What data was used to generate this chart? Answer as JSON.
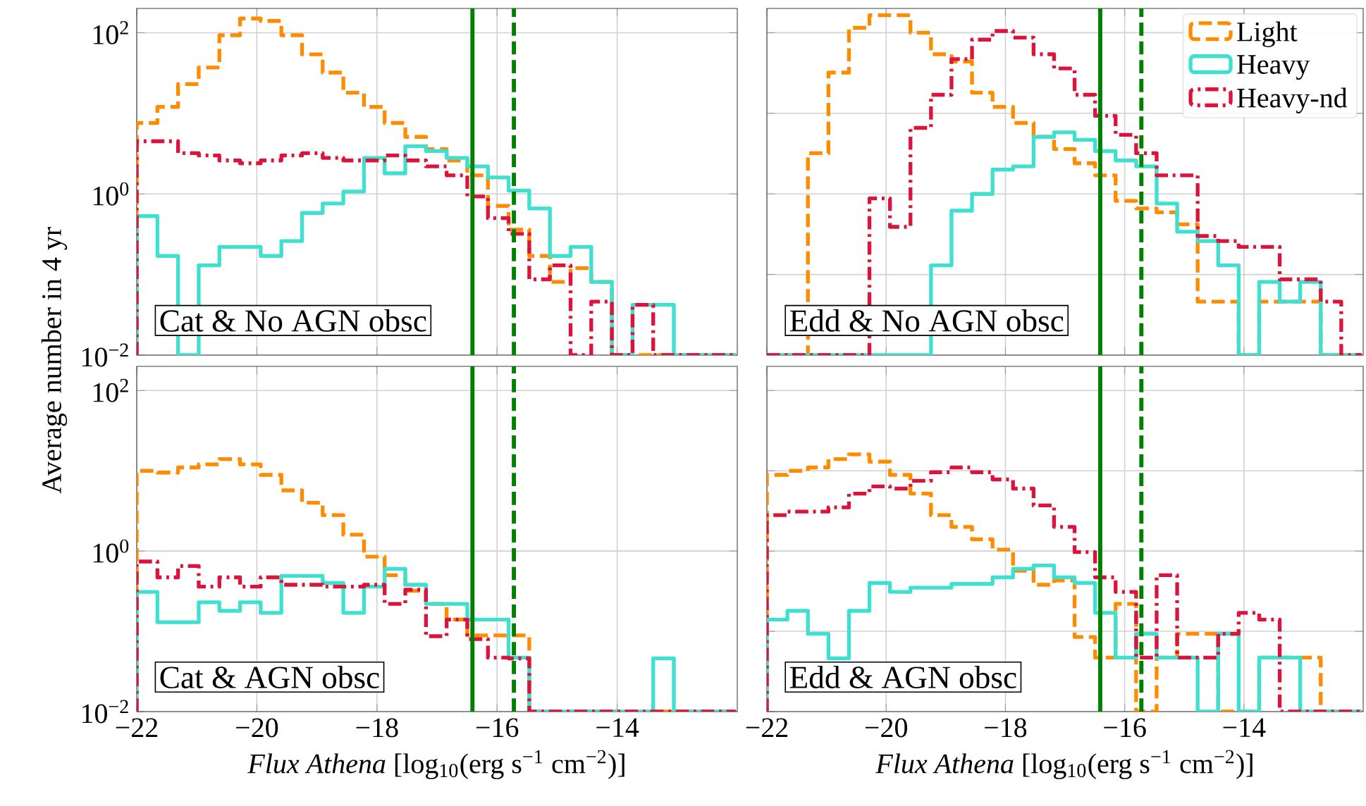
{
  "chart_data": [
    {
      "type": "histogram",
      "ylabel": "Average number in 4 yr",
      "annotations": [
        "Cat & No AGN obsc"
      ],
      "log": "y",
      "grid": true,
      "tick_labels": "y",
      "bins": [
        -22,
        -21.656,
        -21.312,
        -20.968,
        -20.624,
        -20.28,
        -19.936,
        -19.592,
        -19.248,
        -18.904,
        -18.56,
        -18.216,
        -17.872,
        -17.528,
        -17.184,
        -16.84,
        -16.496,
        -16.152,
        -15.808,
        -15.464,
        -15.12,
        -14.776,
        -14.432,
        -14.088,
        -13.744,
        -13.4,
        -13.056,
        -12.712,
        -12.368,
        -12.024
      ],
      "xlim": [
        -22,
        -12
      ],
      "ylim": [
        0.01,
        200
      ],
      "xticks": [
        -22,
        -20,
        -18,
        -16,
        -14
      ],
      "yticks": [
        {
          "value": 0.01,
          "label": "10$^{−2}$"
        },
        {
          "value": 1,
          "label": "10$^{0}$"
        },
        {
          "value": 100,
          "label": "10$^{2}$"
        }
      ],
      "ref_lines": [
        {
          "axis": "x",
          "value": -16.41,
          "color": "#008000",
          "line_style": "solid"
        },
        {
          "axis": "x",
          "value": -15.72,
          "color": "#008000",
          "line_style": "dashed"
        }
      ],
      "series": [
        {
          "color": "#ff8c00",
          "line_style": "dashed",
          "values": [
            7.6,
            12,
            23,
            37,
            93,
            150,
            140,
            93,
            54,
            32,
            18,
            12,
            7.6,
            5.1,
            3.6,
            2.6,
            1.7,
            0.71,
            0.36,
            0.17,
            0.081,
            0.12,
            0.081,
            null,
            null,
            null,
            null,
            null,
            null
          ]
        },
        {
          "color": "#40e0d0",
          "line_style": "solid",
          "values": [
            0.53,
            0.17,
            null,
            0.13,
            0.22,
            0.22,
            0.17,
            0.26,
            0.58,
            0.76,
            1.07,
            2.8,
            1.8,
            3.9,
            3.4,
            2.8,
            2.2,
            1.6,
            1.1,
            0.66,
            0.17,
            0.22,
            0.081,
            null,
            0.042,
            0.042,
            null,
            null,
            null
          ]
        },
        {
          "color": "#dc143c",
          "line_style": "dashdot",
          "values": [
            4.5,
            4.5,
            3.2,
            3.0,
            2.6,
            2.4,
            2.6,
            3.0,
            3.2,
            2.8,
            2.6,
            2.6,
            3.0,
            2.6,
            2.2,
            1.7,
            0.93,
            0.5,
            0.32,
            0.087,
            0.13,
            null,
            0.046,
            null,
            0.042,
            null,
            null,
            null,
            null
          ]
        }
      ]
    },
    {
      "type": "histogram",
      "annotations": [
        "Edd & No AGN obsc"
      ],
      "log": "y",
      "grid": true,
      "tick_labels": false,
      "legend": "top right",
      "bins": [
        -22,
        -21.656,
        -21.312,
        -20.968,
        -20.624,
        -20.28,
        -19.936,
        -19.592,
        -19.248,
        -18.904,
        -18.56,
        -18.216,
        -17.872,
        -17.528,
        -17.184,
        -16.84,
        -16.496,
        -16.152,
        -15.808,
        -15.464,
        -15.12,
        -14.776,
        -14.432,
        -14.088,
        -13.744,
        -13.4,
        -13.056,
        -12.712,
        -12.368,
        -12.024
      ],
      "xlim": [
        -22,
        -12
      ],
      "ylim": [
        0.01,
        200
      ],
      "xticks": [
        -22,
        -20,
        -18,
        -16,
        -14
      ],
      "yticks": [
        0.01,
        0.1,
        1,
        10,
        100
      ],
      "ref_lines": [
        {
          "axis": "x",
          "value": -16.41,
          "color": "#008000",
          "line_style": "solid"
        },
        {
          "axis": "x",
          "value": -15.72,
          "color": "#008000",
          "line_style": "dashed"
        }
      ],
      "series": [
        {
          "name": "Light",
          "color": "#ff8c00",
          "line_style": "dashed",
          "values": [
            null,
            null,
            3.2,
            32,
            115,
            165,
            165,
            100,
            54,
            44,
            18,
            12,
            7.6,
            5.1,
            3.6,
            2.4,
            1.7,
            0.82,
            0.66,
            0.59,
            0.42,
            0.046,
            0.046,
            null,
            0.046,
            0.046,
            0.046,
            null,
            null
          ]
        },
        {
          "name": "Heavy",
          "color": "#40e0d0",
          "line_style": "solid",
          "values": [
            null,
            null,
            null,
            null,
            null,
            null,
            null,
            null,
            0.13,
            0.62,
            1.0,
            2.0,
            2.2,
            5.1,
            5.8,
            4.7,
            3.4,
            2.6,
            2.2,
            0.76,
            0.34,
            0.26,
            0.13,
            null,
            0.081,
            0.046,
            0.081,
            null,
            null
          ]
        },
        {
          "name": "Heavy-nd",
          "color": "#dc143c",
          "line_style": "dashdot",
          "values": [
            null,
            null,
            null,
            null,
            null,
            0.88,
            0.39,
            6.6,
            17,
            47,
            82,
            105,
            87,
            54,
            36,
            17,
            9.3,
            5.4,
            3.2,
            1.7,
            1.7,
            0.3,
            0.26,
            0.22,
            0.22,
            0.087,
            0.087,
            0.046,
            null
          ]
        }
      ]
    },
    {
      "type": "histogram",
      "xlabel": "*Flux Athena* [log$_{10}$(erg s$^{−1}$ cm$^{−2}$)]",
      "annotations": [
        "Cat & AGN obsc"
      ],
      "log": "y",
      "grid": true,
      "bins": [
        -22,
        -21.656,
        -21.312,
        -20.968,
        -20.624,
        -20.28,
        -19.936,
        -19.592,
        -19.248,
        -18.904,
        -18.56,
        -18.216,
        -17.872,
        -17.528,
        -17.184,
        -16.84,
        -16.496,
        -16.152,
        -15.808,
        -15.464,
        -15.12,
        -14.776,
        -14.432,
        -14.088,
        -13.744,
        -13.4,
        -13.056,
        -12.712,
        -12.368,
        -12.024
      ],
      "xlim": [
        -22,
        -12
      ],
      "ylim": [
        0.01,
        200
      ],
      "xticks": [
        {
          "value": -22,
          "label": "−22"
        },
        {
          "value": -20,
          "label": "−20"
        },
        {
          "value": -18,
          "label": "−18"
        },
        {
          "value": -16,
          "label": "−16"
        },
        {
          "value": -14,
          "label": "−14"
        }
      ],
      "yticks": [
        {
          "value": 0.01,
          "label": "10$^{−2}$"
        },
        {
          "value": 1,
          "label": "10$^{0}$"
        },
        {
          "value": 100,
          "label": "10$^{2}$"
        }
      ],
      "ref_lines": [
        {
          "axis": "x",
          "value": -16.41,
          "color": "#008000",
          "line_style": "solid"
        },
        {
          "axis": "x",
          "value": -15.72,
          "color": "#008000",
          "line_style": "dashed"
        }
      ],
      "series": [
        {
          "color": "#ff8c00",
          "line_style": "dashed",
          "values": [
            10,
            9.5,
            11,
            12,
            14,
            12,
            8.9,
            5.7,
            4.0,
            2.8,
            1.6,
            0.85,
            0.5,
            0.32,
            0.22,
            0.14,
            0.089,
            0.089,
            0.089,
            null,
            null,
            null,
            null,
            null,
            null,
            null,
            null,
            null,
            null
          ]
        },
        {
          "color": "#40e0d0",
          "line_style": "solid",
          "values": [
            0.31,
            0.13,
            0.13,
            0.23,
            0.18,
            0.23,
            0.17,
            0.49,
            0.49,
            0.4,
            0.17,
            0.36,
            0.6,
            0.38,
            0.22,
            0.22,
            0.14,
            0.14,
            0.047,
            null,
            null,
            null,
            null,
            null,
            null,
            0.046,
            null,
            null,
            null
          ]
        },
        {
          "color": "#dc143c",
          "line_style": "dashdot",
          "values": [
            0.74,
            0.47,
            0.65,
            0.36,
            0.47,
            0.36,
            0.47,
            0.38,
            0.38,
            0.36,
            0.36,
            0.38,
            0.22,
            0.33,
            0.087,
            0.14,
            0.08,
            0.047,
            0.046,
            null,
            null,
            null,
            null,
            null,
            null,
            null,
            null,
            null,
            null
          ]
        }
      ]
    },
    {
      "type": "histogram",
      "xlabel": "*Flux Athena* [log$_{10}$(erg s$^{−1}$ cm$^{−2}$)]",
      "annotations": [
        "Edd & AGN obsc"
      ],
      "log": "y",
      "grid": true,
      "tick_labels": "x",
      "bins": [
        -22,
        -21.656,
        -21.312,
        -20.968,
        -20.624,
        -20.28,
        -19.936,
        -19.592,
        -19.248,
        -18.904,
        -18.56,
        -18.216,
        -17.872,
        -17.528,
        -17.184,
        -16.84,
        -16.496,
        -16.152,
        -15.808,
        -15.464,
        -15.12,
        -14.776,
        -14.432,
        -14.088,
        -13.744,
        -13.4,
        -13.056,
        -12.712,
        -12.368,
        -12.024
      ],
      "xlim": [
        -22,
        -12
      ],
      "ylim": [
        0.01,
        200
      ],
      "xticks": [
        {
          "value": -22,
          "label": "−22"
        },
        {
          "value": -20,
          "label": "−20"
        },
        {
          "value": -18,
          "label": "−18"
        },
        {
          "value": -16,
          "label": "−16"
        },
        {
          "value": -14,
          "label": "−14"
        }
      ],
      "yticks": [
        0.01,
        0.1,
        1,
        10,
        100
      ],
      "ref_lines": [
        {
          "axis": "x",
          "value": -16.41,
          "color": "#008000",
          "line_style": "solid"
        },
        {
          "axis": "x",
          "value": -15.72,
          "color": "#008000",
          "line_style": "dashed"
        }
      ],
      "series": [
        {
          "color": "#ff8c00",
          "line_style": "dashed",
          "values": [
            8.9,
            10,
            11,
            14,
            16,
            13,
            8.9,
            5.2,
            2.8,
            2.0,
            1.4,
            1.04,
            0.57,
            0.38,
            0.43,
            0.085,
            0.047,
            0.22,
            null,
            0.047,
            0.093,
            0.093,
            null,
            null,
            0.047,
            0.047,
            0.047,
            null,
            null
          ]
        },
        {
          "color": "#40e0d0",
          "line_style": "solid",
          "values": [
            0.14,
            0.18,
            0.093,
            0.046,
            0.18,
            0.4,
            0.31,
            0.35,
            0.35,
            0.39,
            0.39,
            0.47,
            0.6,
            0.66,
            0.47,
            0.4,
            0.17,
            0.047,
            0.093,
            0.047,
            0.047,
            null,
            0.093,
            null,
            0.047,
            0.047,
            null,
            null,
            null
          ]
        },
        {
          "color": "#dc143c",
          "line_style": "dashdot",
          "values": [
            2.8,
            3.1,
            3.1,
            3.5,
            5.2,
            6.4,
            6.0,
            7.5,
            9.6,
            11,
            9.6,
            7.8,
            6.0,
            3.7,
            2.0,
            0.97,
            0.47,
            0.31,
            0.047,
            0.5,
            0.047,
            0.047,
            0.093,
            0.17,
            0.14,
            null,
            null,
            null,
            null
          ]
        }
      ]
    }
  ]
}
